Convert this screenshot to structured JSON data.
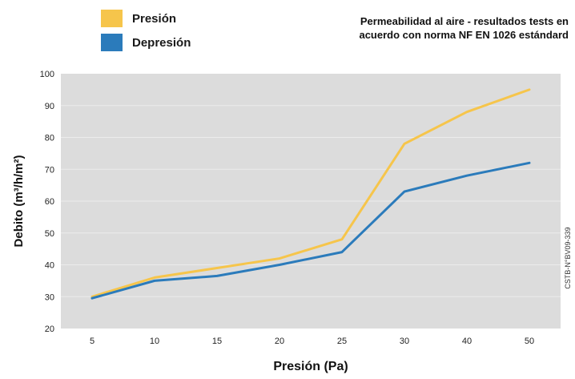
{
  "legend": [
    {
      "label": "Presión",
      "color": "#f6c54b"
    },
    {
      "label": "Depresión",
      "color": "#2b7bbb"
    }
  ],
  "chart_title_lines": [
    "Permeabilidad al aire - resultados tests en",
    "acuerdo con norma NF EN 1026 estándard"
  ],
  "certification": "CSTB-N°BV09-339",
  "chart_data": {
    "type": "line",
    "title": "Permeabilidad al aire - resultados tests en acuerdo con norma NF EN 1026 estándard",
    "xlabel": "Presión (Pa)",
    "ylabel": "Debito (m³/h/m²)",
    "categories": [
      "5",
      "10",
      "15",
      "20",
      "25",
      "30",
      "40",
      "50"
    ],
    "ylim": [
      20,
      100
    ],
    "yticks": [
      20,
      30,
      40,
      50,
      60,
      70,
      80,
      90,
      100
    ],
    "grid": true,
    "legend_position": "top-left",
    "plot_background": "#dcdcdc",
    "series": [
      {
        "name": "Presión",
        "color": "#f6c54b",
        "values": [
          30,
          36,
          39,
          42,
          48,
          78,
          88,
          95
        ]
      },
      {
        "name": "Depresión",
        "color": "#2b7bbb",
        "values": [
          29.5,
          35,
          36.5,
          40,
          44,
          63,
          68,
          72
        ]
      }
    ]
  }
}
